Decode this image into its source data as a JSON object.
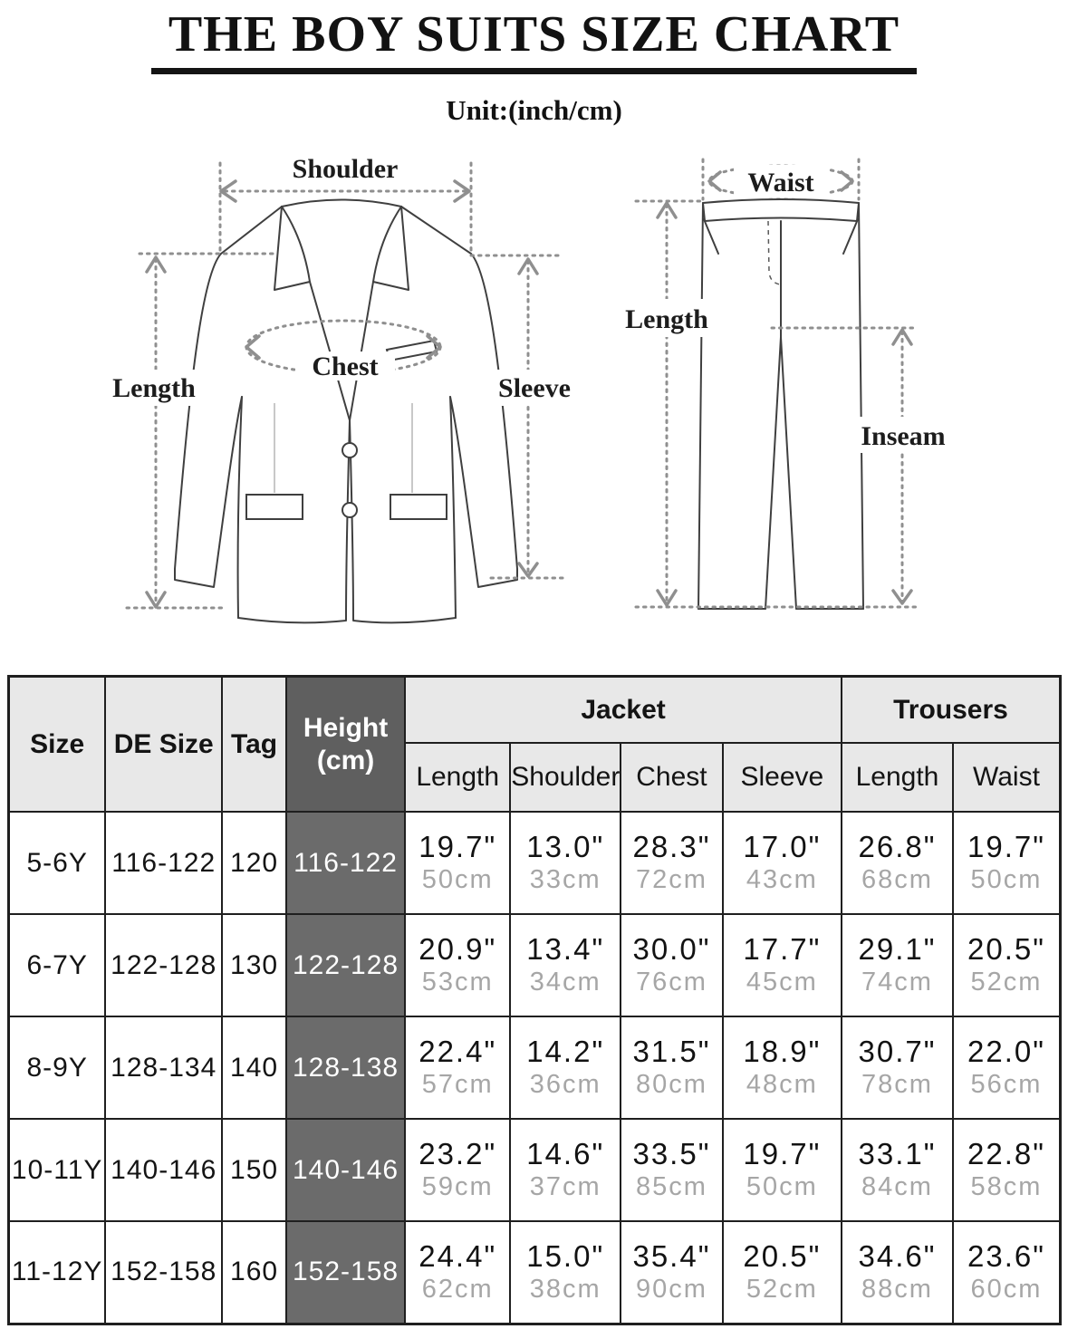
{
  "header": {
    "title": "THE BOY SUITS SIZE CHART",
    "unit_note": "Unit:(inch/cm)"
  },
  "diagram": {
    "jacket": {
      "shoulder": "Shoulder",
      "length": "Length",
      "chest": "Chest",
      "sleeve": "Sleeve"
    },
    "trousers": {
      "waist": "Waist",
      "length": "Length",
      "inseam": "Inseam"
    }
  },
  "colors": {
    "header_bg": "#e8e8e8",
    "height_header_bg": "#5f5f5f",
    "height_cell_bg": "#6b6b6b",
    "table_border": "#1f1f1f",
    "inch_text": "#121212",
    "cm_text": "#a6a6a6",
    "measure_line": "#8f8f8f",
    "garment_line": "#3f3f3f"
  },
  "chart_data": {
    "type": "table",
    "title": "THE BOY SUITS SIZE CHART",
    "unit": "Unit:(inch/cm)",
    "base_columns": [
      "Size",
      "DE Size",
      "Tag",
      "Height\n(cm)"
    ],
    "group_columns": [
      {
        "label": "Jacket",
        "sub": [
          "Length",
          "Shoulder",
          "Chest",
          "Sleeve"
        ]
      },
      {
        "label": "Trousers",
        "sub": [
          "Length",
          "Waist"
        ]
      }
    ],
    "rows": [
      {
        "size": "5-6Y",
        "de_size": "116-122",
        "tag": "120",
        "height_cm": "116-122",
        "measurements": [
          {
            "inch": "19.7\"",
            "cm": "50cm"
          },
          {
            "inch": "13.0\"",
            "cm": "33cm"
          },
          {
            "inch": "28.3\"",
            "cm": "72cm"
          },
          {
            "inch": "17.0\"",
            "cm": "43cm"
          },
          {
            "inch": "26.8\"",
            "cm": "68cm"
          },
          {
            "inch": "19.7\"",
            "cm": "50cm"
          }
        ]
      },
      {
        "size": "6-7Y",
        "de_size": "122-128",
        "tag": "130",
        "height_cm": "122-128",
        "measurements": [
          {
            "inch": "20.9\"",
            "cm": "53cm"
          },
          {
            "inch": "13.4\"",
            "cm": "34cm"
          },
          {
            "inch": "30.0\"",
            "cm": "76cm"
          },
          {
            "inch": "17.7\"",
            "cm": "45cm"
          },
          {
            "inch": "29.1\"",
            "cm": "74cm"
          },
          {
            "inch": "20.5\"",
            "cm": "52cm"
          }
        ]
      },
      {
        "size": "8-9Y",
        "de_size": "128-134",
        "tag": "140",
        "height_cm": "128-138",
        "measurements": [
          {
            "inch": "22.4\"",
            "cm": "57cm"
          },
          {
            "inch": "14.2\"",
            "cm": "36cm"
          },
          {
            "inch": "31.5\"",
            "cm": "80cm"
          },
          {
            "inch": "18.9\"",
            "cm": "48cm"
          },
          {
            "inch": "30.7\"",
            "cm": "78cm"
          },
          {
            "inch": "22.0\"",
            "cm": "56cm"
          }
        ]
      },
      {
        "size": "10-11Y",
        "de_size": "140-146",
        "tag": "150",
        "height_cm": "140-146",
        "measurements": [
          {
            "inch": "23.2\"",
            "cm": "59cm"
          },
          {
            "inch": "14.6\"",
            "cm": "37cm"
          },
          {
            "inch": "33.5\"",
            "cm": "85cm"
          },
          {
            "inch": "19.7\"",
            "cm": "50cm"
          },
          {
            "inch": "33.1\"",
            "cm": "84cm"
          },
          {
            "inch": "22.8\"",
            "cm": "58cm"
          }
        ]
      },
      {
        "size": "11-12Y",
        "de_size": "152-158",
        "tag": "160",
        "height_cm": "152-158",
        "measurements": [
          {
            "inch": "24.4\"",
            "cm": "62cm"
          },
          {
            "inch": "15.0\"",
            "cm": "38cm"
          },
          {
            "inch": "35.4\"",
            "cm": "90cm"
          },
          {
            "inch": "20.5\"",
            "cm": "52cm"
          },
          {
            "inch": "34.6\"",
            "cm": "88cm"
          },
          {
            "inch": "23.6\"",
            "cm": "60cm"
          }
        ]
      }
    ]
  }
}
